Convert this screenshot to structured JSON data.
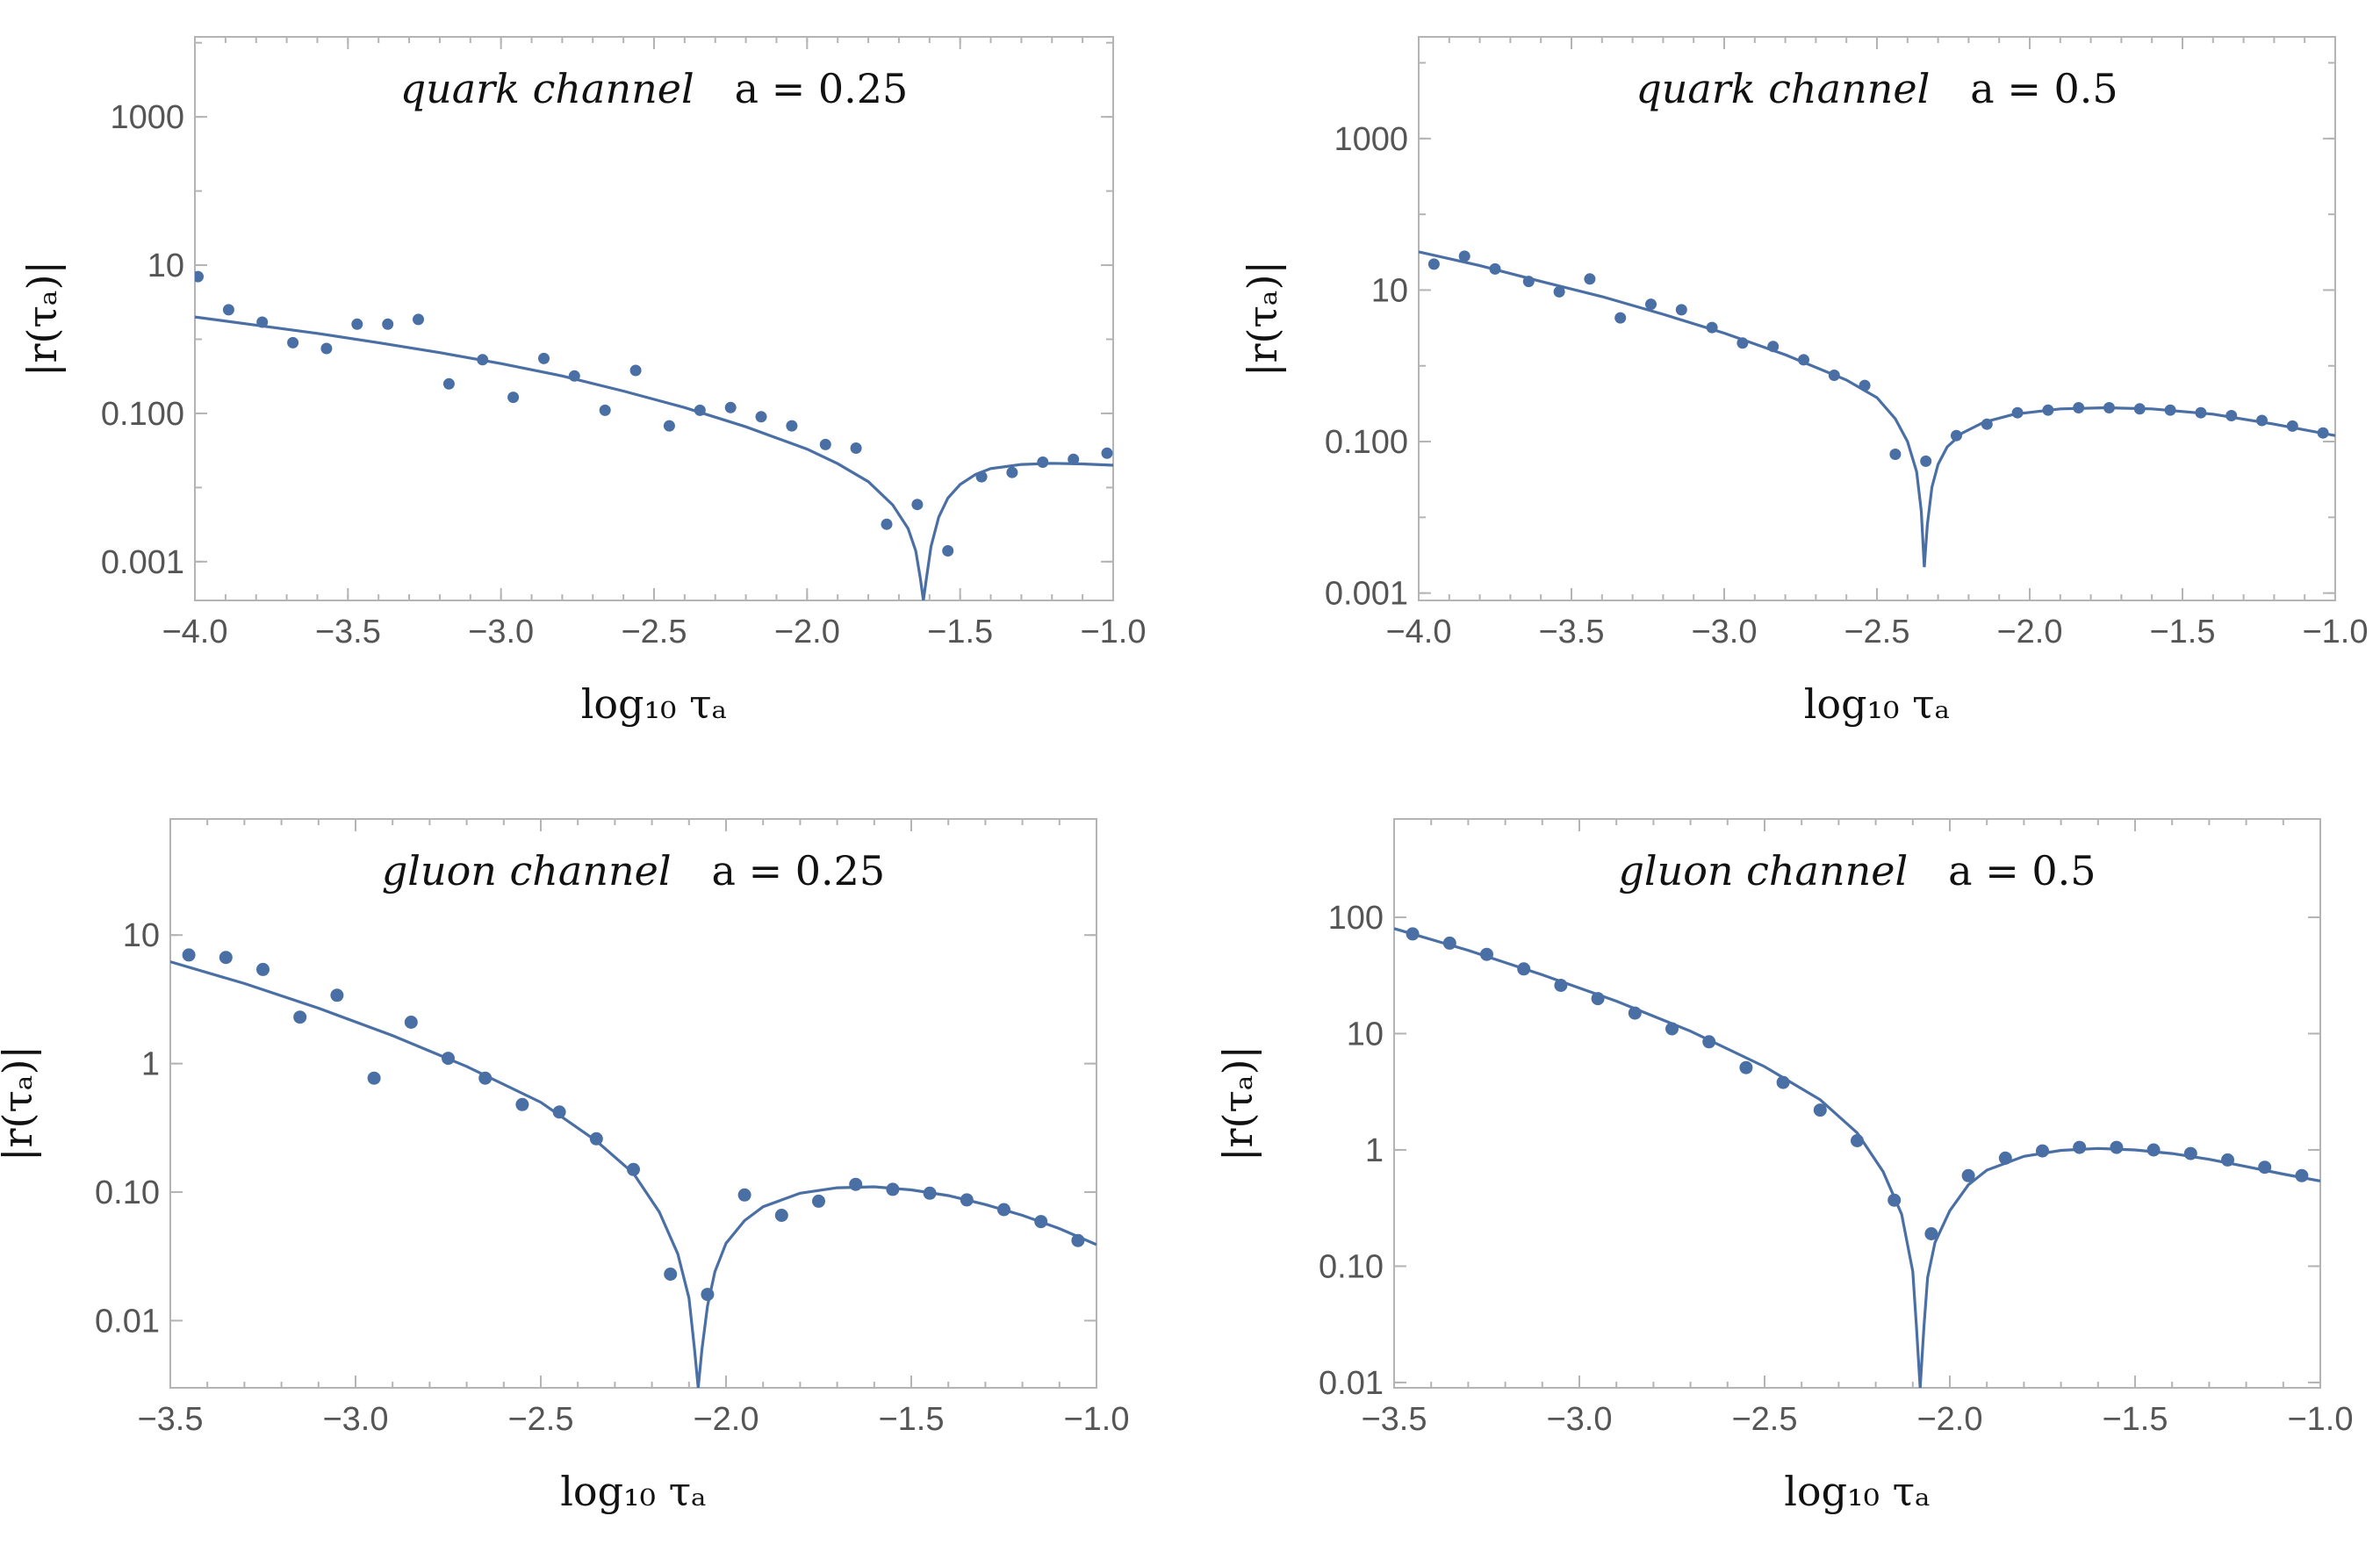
{
  "chart_data": [
    {
      "type": "scatter",
      "title": "quark channel a = 0.25",
      "title_italic": "quark channel",
      "title_param": "a = 0.25",
      "xlabel": "log₁₀ τₐ",
      "ylabel": "|r(τₐ)|",
      "y_scale": "log",
      "xlim": [
        -4.0,
        -1.0
      ],
      "ylim": [
        0.0003,
        12000
      ],
      "xticks": [
        "−4.0",
        "−3.5",
        "−3.0",
        "−2.5",
        "−2.0",
        "−1.5",
        "−1.0"
      ],
      "yticks": [
        "0.001",
        "0.100",
        "10",
        "1000"
      ],
      "series": [
        {
          "kind": "points",
          "x": [
            -3.99,
            -3.89,
            -3.78,
            -3.68,
            -3.57,
            -3.47,
            -3.37,
            -3.27,
            -3.17,
            -3.06,
            -2.96,
            -2.86,
            -2.76,
            -2.66,
            -2.56,
            -2.45,
            -2.35,
            -2.25,
            -2.15,
            -2.05,
            -1.94,
            -1.84,
            -1.74,
            -1.64,
            -1.54,
            -1.43,
            -1.33,
            -1.23,
            -1.13,
            -1.02
          ],
          "y": [
            7.0,
            2.5,
            1.7,
            0.9,
            0.75,
            1.6,
            1.6,
            1.85,
            0.25,
            0.53,
            0.165,
            0.55,
            0.32,
            0.11,
            0.38,
            0.068,
            0.11,
            0.12,
            0.09,
            0.068,
            0.038,
            0.034,
            0.0032,
            0.0059,
            0.0014,
            0.014,
            0.016,
            0.022,
            0.024,
            0.029
          ]
        },
        {
          "kind": "curve",
          "x": [
            -4.0,
            -3.8,
            -3.6,
            -3.4,
            -3.2,
            -3.0,
            -2.8,
            -2.6,
            -2.4,
            -2.2,
            -2.0,
            -1.9,
            -1.8,
            -1.72,
            -1.67,
            -1.645,
            -1.63,
            -1.62,
            -1.61,
            -1.595,
            -1.57,
            -1.54,
            -1.5,
            -1.45,
            -1.4,
            -1.3,
            -1.2,
            -1.1,
            -1.0
          ],
          "y": [
            2.0,
            1.55,
            1.2,
            0.9,
            0.66,
            0.47,
            0.32,
            0.2,
            0.12,
            0.066,
            0.033,
            0.021,
            0.012,
            0.0058,
            0.0028,
            0.0014,
            0.0006,
            0.0003,
            0.0006,
            0.0016,
            0.004,
            0.0072,
            0.011,
            0.015,
            0.018,
            0.0205,
            0.0212,
            0.0208,
            0.02
          ]
        }
      ]
    },
    {
      "type": "scatter",
      "title": "quark channel a = 0.5",
      "title_italic": "quark channel",
      "title_param": "a = 0.5",
      "xlabel": "log₁₀ τₐ",
      "ylabel": "|r(τₐ)|",
      "y_scale": "log",
      "xlim": [
        -4.0,
        -1.0
      ],
      "ylim": [
        0.0008,
        22000
      ],
      "xticks": [
        "−4.0",
        "−3.5",
        "−3.0",
        "−2.5",
        "−2.0",
        "−1.5",
        "−1.0"
      ],
      "yticks": [
        "0.001",
        "0.100",
        "10",
        "1000"
      ],
      "series": [
        {
          "kind": "points",
          "x": [
            -3.95,
            -3.85,
            -3.75,
            -3.64,
            -3.54,
            -3.44,
            -3.34,
            -3.24,
            -3.14,
            -3.04,
            -2.94,
            -2.84,
            -2.74,
            -2.64,
            -2.54,
            -2.44,
            -2.34,
            -2.24,
            -2.14,
            -2.04,
            -1.94,
            -1.84,
            -1.74,
            -1.64,
            -1.54,
            -1.44,
            -1.34,
            -1.24,
            -1.14,
            -1.04
          ],
          "y": [
            22.0,
            28.0,
            19.0,
            13.0,
            9.5,
            14.0,
            4.3,
            6.5,
            5.5,
            3.2,
            2.0,
            1.8,
            1.2,
            0.75,
            0.55,
            0.068,
            0.055,
            0.12,
            0.17,
            0.24,
            0.26,
            0.28,
            0.28,
            0.27,
            0.26,
            0.24,
            0.22,
            0.19,
            0.16,
            0.13
          ]
        },
        {
          "kind": "curve",
          "x": [
            -4.0,
            -3.8,
            -3.6,
            -3.4,
            -3.2,
            -3.0,
            -2.8,
            -2.6,
            -2.5,
            -2.44,
            -2.4,
            -2.37,
            -2.355,
            -2.345,
            -2.335,
            -2.32,
            -2.3,
            -2.27,
            -2.22,
            -2.15,
            -2.05,
            -1.9,
            -1.75,
            -1.6,
            -1.4,
            -1.2,
            -1.0
          ],
          "y": [
            32.0,
            21.0,
            13.0,
            8.2,
            4.8,
            2.7,
            1.4,
            0.65,
            0.38,
            0.2,
            0.1,
            0.04,
            0.012,
            0.0022,
            0.008,
            0.025,
            0.05,
            0.085,
            0.13,
            0.18,
            0.23,
            0.27,
            0.28,
            0.27,
            0.23,
            0.17,
            0.12
          ]
        }
      ]
    },
    {
      "type": "scatter",
      "title": "gluon channel a = 0.25",
      "title_italic": "gluon channel",
      "title_param": "a = 0.25",
      "xlabel": "log₁₀ τₐ",
      "ylabel": "|r(τₐ)|",
      "y_scale": "log",
      "xlim": [
        -3.5,
        -1.0
      ],
      "ylim": [
        0.003,
        80
      ],
      "xticks": [
        "−3.5",
        "−3.0",
        "−2.5",
        "−2.0",
        "−1.5",
        "−1.0"
      ],
      "yticks": [
        "0.01",
        "0.10",
        "1",
        "10"
      ],
      "series": [
        {
          "kind": "points",
          "x": [
            -3.45,
            -3.35,
            -3.25,
            -3.15,
            -3.05,
            -2.95,
            -2.85,
            -2.75,
            -2.65,
            -2.55,
            -2.45,
            -2.35,
            -2.25,
            -2.15,
            -2.05,
            -1.95,
            -1.85,
            -1.75,
            -1.65,
            -1.55,
            -1.45,
            -1.35,
            -1.25,
            -1.15,
            -1.05
          ],
          "y": [
            7.0,
            6.7,
            5.4,
            2.3,
            3.4,
            0.77,
            2.1,
            1.1,
            0.77,
            0.48,
            0.42,
            0.26,
            0.15,
            0.023,
            0.016,
            0.095,
            0.066,
            0.085,
            0.115,
            0.105,
            0.098,
            0.087,
            0.073,
            0.059,
            0.042
          ]
        },
        {
          "kind": "curve",
          "x": [
            -3.5,
            -3.3,
            -3.1,
            -2.9,
            -2.7,
            -2.5,
            -2.35,
            -2.25,
            -2.18,
            -2.13,
            -2.1,
            -2.085,
            -2.075,
            -2.065,
            -2.05,
            -2.03,
            -2.0,
            -1.95,
            -1.9,
            -1.8,
            -1.7,
            -1.6,
            -1.5,
            -1.4,
            -1.3,
            -1.2,
            -1.1,
            -1.0
          ],
          "y": [
            6.2,
            4.2,
            2.7,
            1.65,
            0.95,
            0.5,
            0.25,
            0.14,
            0.07,
            0.033,
            0.015,
            0.006,
            0.003,
            0.006,
            0.013,
            0.024,
            0.04,
            0.06,
            0.077,
            0.098,
            0.108,
            0.11,
            0.104,
            0.094,
            0.08,
            0.066,
            0.052,
            0.039
          ]
        }
      ]
    },
    {
      "type": "scatter",
      "title": "gluon channel a = 0.5",
      "title_italic": "gluon channel",
      "title_param": "a = 0.5",
      "xlabel": "log₁₀ τₐ",
      "ylabel": "|r(τₐ)|",
      "y_scale": "log",
      "xlim": [
        -3.5,
        -1.0
      ],
      "ylim": [
        0.009,
        700
      ],
      "xticks": [
        "−3.5",
        "−3.0",
        "−2.5",
        "−2.0",
        "−1.5",
        "−1.0"
      ],
      "yticks": [
        "0.01",
        "0.10",
        "1",
        "10",
        "100"
      ],
      "series": [
        {
          "kind": "points",
          "x": [
            -3.45,
            -3.35,
            -3.25,
            -3.15,
            -3.05,
            -2.95,
            -2.85,
            -2.75,
            -2.65,
            -2.55,
            -2.45,
            -2.35,
            -2.25,
            -2.15,
            -2.05,
            -1.95,
            -1.85,
            -1.75,
            -1.65,
            -1.55,
            -1.45,
            -1.35,
            -1.25,
            -1.15,
            -1.05
          ],
          "y": [
            72.0,
            60.0,
            48.0,
            36.0,
            26.0,
            20.0,
            15.0,
            11.0,
            8.5,
            5.1,
            3.8,
            2.2,
            1.2,
            0.37,
            0.19,
            0.6,
            0.85,
            0.98,
            1.05,
            1.05,
            1.0,
            0.93,
            0.82,
            0.71,
            0.6
          ]
        },
        {
          "kind": "curve",
          "x": [
            -3.5,
            -3.3,
            -3.1,
            -2.9,
            -2.7,
            -2.5,
            -2.35,
            -2.25,
            -2.18,
            -2.13,
            -2.1,
            -2.09,
            -2.08,
            -2.07,
            -2.06,
            -2.04,
            -2.0,
            -1.95,
            -1.9,
            -1.8,
            -1.7,
            -1.6,
            -1.5,
            -1.4,
            -1.3,
            -1.2,
            -1.1,
            -1.0
          ],
          "y": [
            80.0,
            52.0,
            32.0,
            19.0,
            10.5,
            5.2,
            2.7,
            1.4,
            0.65,
            0.28,
            0.09,
            0.03,
            0.009,
            0.03,
            0.08,
            0.16,
            0.3,
            0.5,
            0.67,
            0.88,
            0.99,
            1.03,
            1.0,
            0.93,
            0.83,
            0.72,
            0.62,
            0.54
          ]
        }
      ]
    }
  ]
}
